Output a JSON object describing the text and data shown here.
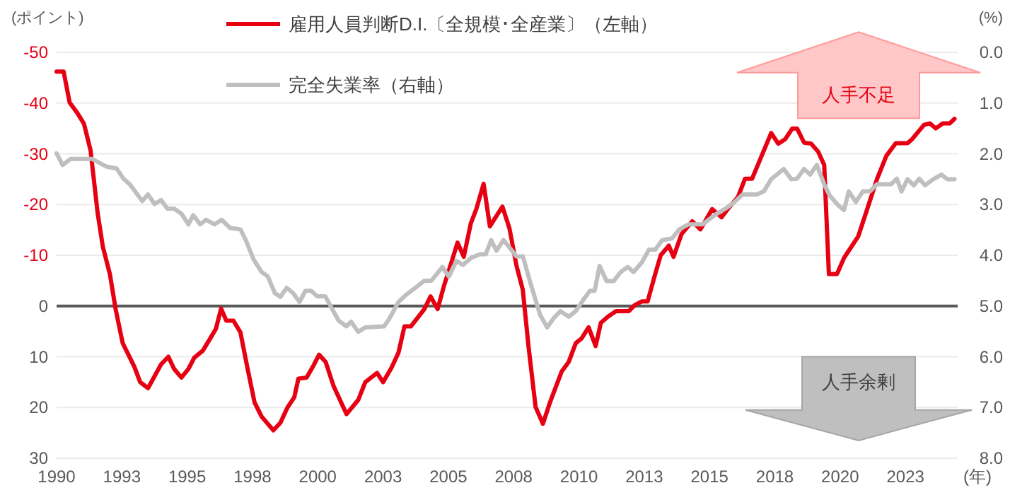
{
  "chart_data": {
    "type": "line",
    "ylabel": "(ポイント)",
    "y2label": "(%)",
    "xlabel": "(年)",
    "xlim": [
      1990,
      2024.5
    ],
    "xticks": [
      1990,
      {
        "value": 1992.5,
        "label": "1993"
      },
      1995,
      {
        "value": 1997.5,
        "label": "1998"
      },
      2000,
      {
        "value": 2002.5,
        "label": "2003"
      },
      2005,
      {
        "value": 2007.5,
        "label": "2008"
      },
      2010,
      {
        "value": 2012.5,
        "label": "2013"
      },
      2015,
      {
        "value": 2017.5,
        "label": "2018"
      },
      2020,
      {
        "value": 2022.5,
        "label": "2023"
      }
    ],
    "ylim": [
      30,
      -50
    ],
    "yticks": [
      -50,
      -40,
      -30,
      -20,
      -10,
      0,
      10,
      20,
      30
    ],
    "y2lim": [
      8,
      0
    ],
    "y2ticks": [
      {
        "value": 0,
        "label": "0.0"
      },
      {
        "value": 1,
        "label": "1.0"
      },
      {
        "value": 2,
        "label": "2.0"
      },
      {
        "value": 3,
        "label": "3.0"
      },
      {
        "value": 4,
        "label": "4.0"
      },
      {
        "value": 5,
        "label": "5.0"
      },
      {
        "value": 6,
        "label": "6.0"
      },
      {
        "value": 7,
        "label": "7.0"
      },
      {
        "value": 8,
        "label": "8.0"
      }
    ],
    "grid": "y",
    "legend": "top",
    "marker": "none",
    "line_style": "solid",
    "ref_lines": [
      {
        "axis": "y",
        "value": 0,
        "color": "#595959"
      }
    ],
    "annotations": [
      "人手不足",
      "人手余剰"
    ],
    "series": [
      {
        "name": "雇用人員判断D.I.〔全規模･全産業〕（左軸）",
        "color": "#e60012",
        "x": [
          1990,
          1990.27,
          1990.5,
          1990.8,
          1991.05,
          1991.3,
          1991.57,
          1991.77,
          1992.04,
          1992.26,
          1992.53,
          1992.98,
          1993.2,
          1993.5,
          1994,
          1994.28,
          1994.5,
          1994.78,
          1995.05,
          1995.27,
          1995.6,
          1995.87,
          1996.1,
          1996.3,
          1996.5,
          1996.77,
          1997.04,
          1997.3,
          1997.58,
          1997.85,
          1998.3,
          1998.57,
          1998.84,
          1999.1,
          1999.26,
          1999.57,
          1999.84,
          2000.05,
          2000.3,
          2000.6,
          2001.1,
          2001.55,
          2001.82,
          2002.27,
          2002.5,
          2002.82,
          2003.09,
          2003.32,
          2003.57,
          2004.08,
          2004.32,
          2004.59,
          2004.84,
          2005.13,
          2005.35,
          2005.59,
          2005.86,
          2006.07,
          2006.35,
          2006.59,
          2007.07,
          2007.34,
          2007.61,
          2007.85,
          2008.07,
          2008.34,
          2008.62,
          2008.89,
          2009.34,
          2009.61,
          2009.88,
          2010.1,
          2010.37,
          2010.64,
          2010.84,
          2011.11,
          2011.42,
          2011.91,
          2012.14,
          2012.41,
          2012.63,
          2012.92,
          2013.13,
          2013.44,
          2013.62,
          2013.93,
          2014.34,
          2014.65,
          2015.1,
          2015.46,
          2015.73,
          2016.09,
          2016.36,
          2016.63,
          2017.36,
          2017.63,
          2017.9,
          2018.17,
          2018.35,
          2018.62,
          2018.89,
          2019.16,
          2019.39,
          2019.57,
          2019.88,
          2020.15,
          2020.51,
          2020.69,
          2021.05,
          2021.41,
          2021.77,
          2022.13,
          2022.58,
          2022.76,
          2023.21,
          2023.44,
          2023.66,
          2023.93,
          2024.2,
          2024.38
        ],
        "values": [
          -46.2,
          -46.2,
          -40.1,
          -38,
          -35.9,
          -30.7,
          -18.4,
          -11.7,
          -6.3,
          0.6,
          7.3,
          12,
          15,
          16.2,
          11.5,
          10,
          12.4,
          14.1,
          12.4,
          10.2,
          8.8,
          6.5,
          4.5,
          0.5,
          2.9,
          2.9,
          5.2,
          12,
          19,
          21.8,
          24.5,
          23,
          20,
          18,
          14.3,
          14.1,
          11.7,
          9.6,
          11,
          15.7,
          21.3,
          18.5,
          15,
          13.2,
          15,
          12.2,
          9.2,
          4,
          4,
          0.6,
          -1.9,
          0.6,
          -4.1,
          -8.8,
          -12.5,
          -9.7,
          -16.3,
          -19.1,
          -24.1,
          -15.7,
          -19.6,
          -15.3,
          -7.9,
          -3.2,
          8,
          19.9,
          23.2,
          19,
          12.9,
          11,
          7.3,
          6.4,
          4.2,
          7.9,
          3.3,
          2.1,
          1,
          1,
          -0.2,
          -0.9,
          -0.9,
          -6.3,
          -10,
          -11.9,
          -9.7,
          -14.2,
          -16.7,
          -15.1,
          -19.1,
          -17.5,
          -19.3,
          -21.5,
          -25.1,
          -25.1,
          -34.1,
          -32,
          -32.9,
          -35,
          -35,
          -32.2,
          -32,
          -30.4,
          -27.8,
          -6.3,
          -6.3,
          -9.5,
          -12.3,
          -13.7,
          -19.3,
          -25,
          -29.6,
          -32.1,
          -32.1,
          -32.9,
          -35.7,
          -36,
          -35,
          -36,
          -36,
          -36.9
        ]
      },
      {
        "name": "完全失業率（右軸）",
        "color": "#bfbfbf",
        "axis": "y2",
        "x": [
          1990,
          1990.23,
          1990.54,
          1991.35,
          1991.9,
          1992.3,
          1992.56,
          1992.8,
          1993.28,
          1993.5,
          1993.75,
          1994,
          1994.24,
          1994.5,
          1994.78,
          1995.05,
          1995.23,
          1995.5,
          1995.72,
          1996.05,
          1996.32,
          1996.64,
          1997.04,
          1997.26,
          1997.55,
          1997.85,
          1998.09,
          1998.36,
          1998.57,
          1998.81,
          1999.06,
          1999.3,
          1999.53,
          1999.75,
          1999.98,
          2000.29,
          2000.52,
          2000.8,
          2001.1,
          2001.28,
          2001.55,
          2001.82,
          2002.54,
          2002.73,
          2003.09,
          2003.36,
          2003.81,
          2004.08,
          2004.35,
          2004.77,
          2005.02,
          2005.31,
          2005.56,
          2005.88,
          2006.21,
          2006.43,
          2006.64,
          2006.84,
          2007.11,
          2007.36,
          2007.6,
          2007.85,
          2008.15,
          2008.51,
          2008.78,
          2009.05,
          2009.29,
          2009.61,
          2009.88,
          2010.15,
          2010.42,
          2010.6,
          2010.79,
          2011.06,
          2011.33,
          2011.6,
          2011.87,
          2012.09,
          2012.41,
          2012.68,
          2012.92,
          2013.19,
          2013.56,
          2013.84,
          2014.2,
          2014.74,
          2015.19,
          2015.64,
          2015.91,
          2016.27,
          2016.81,
          2017.08,
          2017.36,
          2017.84,
          2018.13,
          2018.35,
          2018.62,
          2018.85,
          2019.11,
          2019.39,
          2019.61,
          2019.94,
          2020.15,
          2020.33,
          2020.6,
          2020.87,
          2021.14,
          2021.41,
          2021.95,
          2022.17,
          2022.35,
          2022.58,
          2022.82,
          2023.03,
          2023.25,
          2023.57,
          2023.88,
          2024.1,
          2024.38
        ],
        "values": [
          1.99,
          2.22,
          2.1,
          2.1,
          2.25,
          2.29,
          2.49,
          2.6,
          2.93,
          2.8,
          2.99,
          2.91,
          3.08,
          3.08,
          3.18,
          3.39,
          3.21,
          3.39,
          3.3,
          3.39,
          3.3,
          3.46,
          3.49,
          3.72,
          4.09,
          4.33,
          4.42,
          4.75,
          4.82,
          4.64,
          4.75,
          4.92,
          4.7,
          4.7,
          4.81,
          4.81,
          5.03,
          5.29,
          5.4,
          5.31,
          5.51,
          5.42,
          5.4,
          5.26,
          4.92,
          4.79,
          4.61,
          4.5,
          4.5,
          4.23,
          4.42,
          4.11,
          4.19,
          4.05,
          3.98,
          3.98,
          3.7,
          3.91,
          3.7,
          3.86,
          4.02,
          4.02,
          4.56,
          5.17,
          5.42,
          5.23,
          5.1,
          5.21,
          5.1,
          4.89,
          4.7,
          4.7,
          4.21,
          4.51,
          4.51,
          4.33,
          4.23,
          4.33,
          4.14,
          3.89,
          3.89,
          3.7,
          3.67,
          3.49,
          3.39,
          3.39,
          3.21,
          3.07,
          2.97,
          2.8,
          2.8,
          2.74,
          2.5,
          2.3,
          2.5,
          2.49,
          2.3,
          2.41,
          2.22,
          2.6,
          2.83,
          3.02,
          3.11,
          2.74,
          2.95,
          2.74,
          2.74,
          2.6,
          2.6,
          2.49,
          2.74,
          2.5,
          2.62,
          2.49,
          2.62,
          2.5,
          2.41,
          2.5,
          2.5
        ]
      }
    ]
  }
}
